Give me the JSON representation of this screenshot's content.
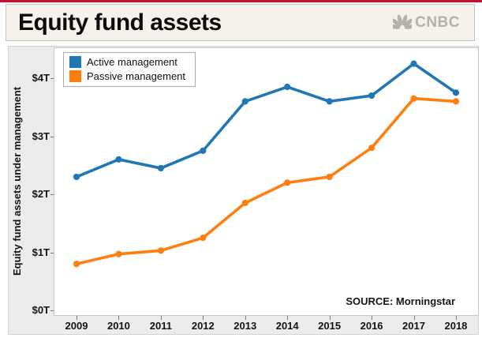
{
  "header": {
    "title": "Equity fund assets",
    "logo_text": "CNBC"
  },
  "colors": {
    "top_accent_red": "#c8102e",
    "header_background": "#f6f1ea",
    "axes_panel_gray": "#ebebeb",
    "active_blue": "#1f77b4",
    "passive_orange": "#ff7f0e"
  },
  "chart_data": {
    "type": "line",
    "title": "Equity fund assets",
    "categories": [
      "2009",
      "2010",
      "2011",
      "2012",
      "2013",
      "2014",
      "2015",
      "2016",
      "2017",
      "2018"
    ],
    "series": [
      {
        "id": "active",
        "name": "Active management",
        "color": "#1f77b4",
        "values": [
          2.3,
          2.6,
          2.45,
          2.75,
          3.6,
          3.85,
          3.6,
          3.7,
          4.25,
          3.75
        ]
      },
      {
        "id": "passive",
        "name": "Passive management",
        "color": "#ff7f0e",
        "values": [
          0.8,
          0.97,
          1.03,
          1.25,
          1.85,
          2.2,
          2.3,
          2.8,
          3.65,
          3.6
        ]
      }
    ],
    "xlabel": "",
    "ylabel": "Equity fund assets under management",
    "yticks": [
      {
        "value": 0,
        "label": "$0T"
      },
      {
        "value": 1,
        "label": "$1T"
      },
      {
        "value": 2,
        "label": "$2T"
      },
      {
        "value": 3,
        "label": "$3T"
      },
      {
        "value": 4,
        "label": "$4T"
      }
    ],
    "ylim": [
      0,
      4.53
    ],
    "units": "trillions USD",
    "grid": false,
    "legend_position": "top-left",
    "source": "SOURCE: Morningstar"
  }
}
